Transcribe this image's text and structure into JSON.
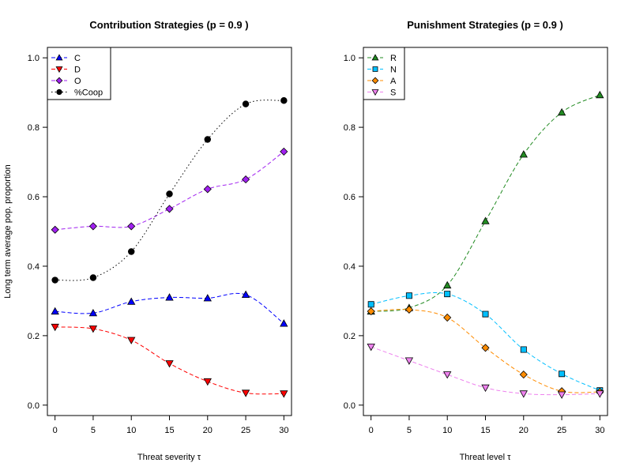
{
  "chart_data": [
    {
      "type": "line",
      "title": "Contribution Strategies (p = 0.9 )",
      "xlabel": "Threat severity τ",
      "ylabel": "Long term average pop. proportion",
      "xlim": [
        -1,
        31
      ],
      "ylim": [
        -0.03,
        1.03
      ],
      "xticks": [
        0,
        5,
        10,
        15,
        20,
        25,
        30
      ],
      "yticks": [
        0.0,
        0.2,
        0.4,
        0.6,
        0.8,
        1.0
      ],
      "legend_position": "top-left",
      "x": [
        0,
        5,
        10,
        15,
        20,
        25,
        30
      ],
      "series": [
        {
          "name": "C",
          "color": "#0000ff",
          "marker": "triangle-up",
          "values": [
            0.27,
            0.265,
            0.298,
            0.31,
            0.308,
            0.318,
            0.235
          ]
        },
        {
          "name": "D",
          "color": "#ff0000",
          "marker": "triangle-down",
          "values": [
            0.225,
            0.22,
            0.187,
            0.12,
            0.068,
            0.035,
            0.033
          ]
        },
        {
          "name": "O",
          "color": "#a020f0",
          "marker": "diamond",
          "values": [
            0.505,
            0.515,
            0.515,
            0.565,
            0.622,
            0.65,
            0.73
          ]
        },
        {
          "name": "%Coop",
          "color": "#000000",
          "marker": "circle",
          "values": [
            0.36,
            0.367,
            0.442,
            0.608,
            0.765,
            0.867,
            0.877
          ]
        }
      ]
    },
    {
      "type": "line",
      "title": "Punishment Strategies (p = 0.9 )",
      "xlabel": "Threat level τ",
      "ylabel": "",
      "xlim": [
        -1,
        31
      ],
      "ylim": [
        -0.03,
        1.03
      ],
      "xticks": [
        0,
        5,
        10,
        15,
        20,
        25,
        30
      ],
      "yticks": [
        0.0,
        0.2,
        0.4,
        0.6,
        0.8,
        1.0
      ],
      "legend_position": "top-left",
      "x": [
        0,
        5,
        10,
        15,
        20,
        25,
        30
      ],
      "series": [
        {
          "name": "R",
          "color": "#228b22",
          "marker": "triangle-up",
          "values": [
            0.27,
            0.28,
            0.345,
            0.53,
            0.722,
            0.843,
            0.893
          ]
        },
        {
          "name": "N",
          "color": "#00bfff",
          "marker": "square",
          "values": [
            0.29,
            0.315,
            0.32,
            0.262,
            0.16,
            0.09,
            0.042
          ]
        },
        {
          "name": "A",
          "color": "#ff8c00",
          "marker": "diamond",
          "values": [
            0.27,
            0.275,
            0.252,
            0.165,
            0.088,
            0.04,
            0.038
          ]
        },
        {
          "name": "S",
          "color": "#ee82ee",
          "marker": "triangle-down",
          "values": [
            0.168,
            0.128,
            0.088,
            0.05,
            0.033,
            0.03,
            0.033
          ]
        }
      ]
    }
  ]
}
